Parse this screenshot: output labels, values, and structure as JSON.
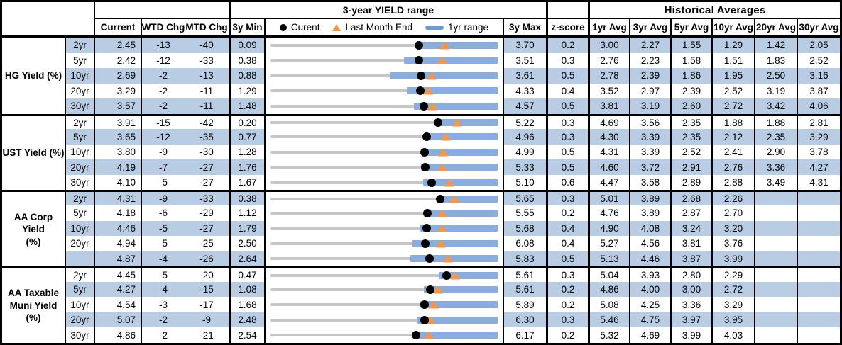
{
  "header": {
    "range_title": "3-year YIELD range",
    "hist_title": "Historical Averages",
    "col_current": "Current",
    "col_wtd": "WTD Chg",
    "col_mtd": "MTD Chg",
    "col_3y_min": "3y Min",
    "col_3y_max": "3y Max",
    "col_zscore": "z-score",
    "avg_cols": [
      "1yr Avg",
      "3yr Avg",
      "5yr Avg",
      "10yr Avg",
      "20yr Avg",
      "30yr Avg"
    ],
    "legend": {
      "current": "Curent",
      "last_month_end": "Last Month End",
      "one_yr_range": "1yr range"
    }
  },
  "colors": {
    "row_shade": "#b8cce4",
    "bar_blue": "#8badde",
    "track_gray": "#c6c6c6",
    "marker_orange": "#f79646",
    "marker_black": "#000000"
  },
  "chart_data": {
    "type": "table",
    "description": "Yield dashboard: per-tenor current yields, WTD/MTD changes in bp, 3-year min/max range strip with current dot, last-month-end triangle and 1yr range bar, z-score, historical averages",
    "sections": [
      {
        "label": "HG Yield (%)",
        "rows": [
          {
            "tenor": "2yr",
            "current": "2.45",
            "wtd_chg": "-13",
            "mtd_chg": "-40",
            "min_3y": "0.09",
            "max_3y": "3.70",
            "z_score": "0.2",
            "avgs": [
              "3.00",
              "2.27",
              "1.55",
              "1.29",
              "1.42",
              "2.05"
            ],
            "last_month_end": 2.85,
            "one_yr_low": 2.4,
            "one_yr_high": 3.7
          },
          {
            "tenor": "5yr",
            "current": "2.42",
            "wtd_chg": "-12",
            "mtd_chg": "-33",
            "min_3y": "0.38",
            "max_3y": "3.51",
            "z_score": "0.3",
            "avgs": [
              "2.76",
              "2.23",
              "1.58",
              "1.51",
              "1.83",
              "2.52"
            ],
            "last_month_end": 2.75,
            "one_yr_low": 2.22,
            "one_yr_high": 3.51
          },
          {
            "tenor": "10yr",
            "current": "2.69",
            "wtd_chg": "-2",
            "mtd_chg": "-13",
            "min_3y": "0.88",
            "max_3y": "3.61",
            "z_score": "0.5",
            "avgs": [
              "2.78",
              "2.39",
              "1.86",
              "1.95",
              "2.50",
              "3.16"
            ],
            "last_month_end": 2.82,
            "one_yr_low": 2.31,
            "one_yr_high": 3.61
          },
          {
            "tenor": "20yr",
            "current": "3.29",
            "wtd_chg": "-2",
            "mtd_chg": "-11",
            "min_3y": "1.29",
            "max_3y": "4.33",
            "z_score": "0.4",
            "avgs": [
              "3.52",
              "2.97",
              "2.39",
              "2.52",
              "3.19",
              "3.87"
            ],
            "last_month_end": 3.4,
            "one_yr_low": 3.11,
            "one_yr_high": 4.33
          },
          {
            "tenor": "30yr",
            "current": "3.57",
            "wtd_chg": "-2",
            "mtd_chg": "-11",
            "min_3y": "1.48",
            "max_3y": "4.57",
            "z_score": "0.5",
            "avgs": [
              "3.81",
              "3.19",
              "2.60",
              "2.72",
              "3.42",
              "4.06"
            ],
            "last_month_end": 3.68,
            "one_yr_low": 3.43,
            "one_yr_high": 4.57
          }
        ]
      },
      {
        "label": "UST Yield (%)",
        "rows": [
          {
            "tenor": "2yr",
            "current": "3.91",
            "wtd_chg": "-15",
            "mtd_chg": "-42",
            "min_3y": "0.20",
            "max_3y": "5.22",
            "z_score": "0.3",
            "avgs": [
              "4.69",
              "3.56",
              "2.35",
              "1.88",
              "1.88",
              "2.81"
            ],
            "last_month_end": 4.33,
            "one_yr_low": 3.91,
            "one_yr_high": 5.22
          },
          {
            "tenor": "5yr",
            "current": "3.65",
            "wtd_chg": "-12",
            "mtd_chg": "-35",
            "min_3y": "0.77",
            "max_3y": "4.96",
            "z_score": "0.3",
            "avgs": [
              "4.30",
              "3.39",
              "2.35",
              "2.12",
              "2.35",
              "3.29"
            ],
            "last_month_end": 4.0,
            "one_yr_low": 3.64,
            "one_yr_high": 4.96
          },
          {
            "tenor": "10yr",
            "current": "3.80",
            "wtd_chg": "-9",
            "mtd_chg": "-30",
            "min_3y": "1.28",
            "max_3y": "4.99",
            "z_score": "0.5",
            "avgs": [
              "4.31",
              "3.39",
              "2.52",
              "2.41",
              "2.90",
              "3.78"
            ],
            "last_month_end": 4.1,
            "one_yr_low": 3.79,
            "one_yr_high": 4.99
          },
          {
            "tenor": "20yr",
            "current": "4.19",
            "wtd_chg": "-7",
            "mtd_chg": "-27",
            "min_3y": "1.76",
            "max_3y": "5.33",
            "z_score": "0.5",
            "avgs": [
              "4.60",
              "3.72",
              "2.91",
              "2.76",
              "3.36",
              "4.27"
            ],
            "last_month_end": 4.46,
            "one_yr_low": 4.12,
            "one_yr_high": 5.33
          },
          {
            "tenor": "30yr",
            "current": "4.10",
            "wtd_chg": "-5",
            "mtd_chg": "-27",
            "min_3y": "1.67",
            "max_3y": "5.10",
            "z_score": "0.6",
            "avgs": [
              "4.47",
              "3.58",
              "2.89",
              "2.88",
              "3.49",
              "4.31"
            ],
            "last_month_end": 4.37,
            "one_yr_low": 3.97,
            "one_yr_high": 5.1
          }
        ]
      },
      {
        "label": "AA Corp Yield\n(%)",
        "rows": [
          {
            "tenor": "2yr",
            "current": "4.31",
            "wtd_chg": "-9",
            "mtd_chg": "-33",
            "min_3y": "0.38",
            "max_3y": "5.65",
            "z_score": "0.3",
            "avgs": [
              "5.01",
              "3.89",
              "2.68",
              "2.26",
              "",
              ""
            ],
            "last_month_end": 4.64,
            "one_yr_low": 4.28,
            "one_yr_high": 5.65
          },
          {
            "tenor": "5yr",
            "current": "4.18",
            "wtd_chg": "-6",
            "mtd_chg": "-29",
            "min_3y": "1.12",
            "max_3y": "5.55",
            "z_score": "0.2",
            "avgs": [
              "4.76",
              "3.89",
              "2.87",
              "2.70",
              "",
              ""
            ],
            "last_month_end": 4.47,
            "one_yr_low": 4.16,
            "one_yr_high": 5.55
          },
          {
            "tenor": "10yr",
            "current": "4.46",
            "wtd_chg": "-5",
            "mtd_chg": "-27",
            "min_3y": "1.79",
            "max_3y": "5.68",
            "z_score": "0.4",
            "avgs": [
              "4.90",
              "4.08",
              "3.24",
              "3.20",
              "",
              ""
            ],
            "last_month_end": 4.73,
            "one_yr_low": 4.35,
            "one_yr_high": 5.68
          },
          {
            "tenor": "20yr",
            "current": "4.94",
            "wtd_chg": "-5",
            "mtd_chg": "-25",
            "min_3y": "2.50",
            "max_3y": "6.08",
            "z_score": "0.4",
            "avgs": [
              "5.27",
              "4.56",
              "3.81",
              "3.76",
              "",
              ""
            ],
            "last_month_end": 5.19,
            "one_yr_low": 4.74,
            "one_yr_high": 6.08
          },
          {
            "tenor": "",
            "current": "4.87",
            "wtd_chg": "-4",
            "mtd_chg": "-26",
            "min_3y": "2.64",
            "max_3y": "5.83",
            "z_score": "0.5",
            "avgs": [
              "5.13",
              "4.46",
              "3.87",
              "3.99",
              "",
              ""
            ],
            "last_month_end": 5.13,
            "one_yr_low": 4.6,
            "one_yr_high": 5.83
          }
        ]
      },
      {
        "label": "AA Taxable\nMuni Yield\n(%)",
        "rows": [
          {
            "tenor": "2yr",
            "current": "4.45",
            "wtd_chg": "-5",
            "mtd_chg": "-20",
            "min_3y": "0.47",
            "max_3y": "5.61",
            "z_score": "0.3",
            "avgs": [
              "5.04",
              "3.93",
              "2.80",
              "2.29",
              "",
              ""
            ],
            "last_month_end": 4.65,
            "one_yr_low": 4.27,
            "one_yr_high": 5.61
          },
          {
            "tenor": "5yr",
            "current": "4.27",
            "wtd_chg": "-4",
            "mtd_chg": "-15",
            "min_3y": "1.08",
            "max_3y": "5.61",
            "z_score": "0.2",
            "avgs": [
              "4.86",
              "4.00",
              "3.00",
              "2.72",
              "",
              ""
            ],
            "last_month_end": 4.42,
            "one_yr_low": 4.14,
            "one_yr_high": 5.61
          },
          {
            "tenor": "10yr",
            "current": "4.54",
            "wtd_chg": "-3",
            "mtd_chg": "-17",
            "min_3y": "1.68",
            "max_3y": "5.89",
            "z_score": "0.2",
            "avgs": [
              "5.08",
              "4.25",
              "3.36",
              "3.29",
              "",
              ""
            ],
            "last_month_end": 4.71,
            "one_yr_low": 4.45,
            "one_yr_high": 5.89
          },
          {
            "tenor": "20yr",
            "current": "5.07",
            "wtd_chg": "-2",
            "mtd_chg": "-9",
            "min_3y": "2.48",
            "max_3y": "6.30",
            "z_score": "0.3",
            "avgs": [
              "5.46",
              "4.75",
              "3.97",
              "3.95",
              "",
              ""
            ],
            "last_month_end": 5.16,
            "one_yr_low": 4.95,
            "one_yr_high": 6.3
          },
          {
            "tenor": "30yr",
            "current": "4.86",
            "wtd_chg": "-2",
            "mtd_chg": "-21",
            "min_3y": "2.54",
            "max_3y": "6.17",
            "z_score": "0.2",
            "avgs": [
              "5.32",
              "4.69",
              "3.99",
              "4.03",
              "",
              ""
            ],
            "last_month_end": 5.07,
            "one_yr_low": 4.82,
            "one_yr_high": 6.17
          }
        ]
      }
    ]
  }
}
